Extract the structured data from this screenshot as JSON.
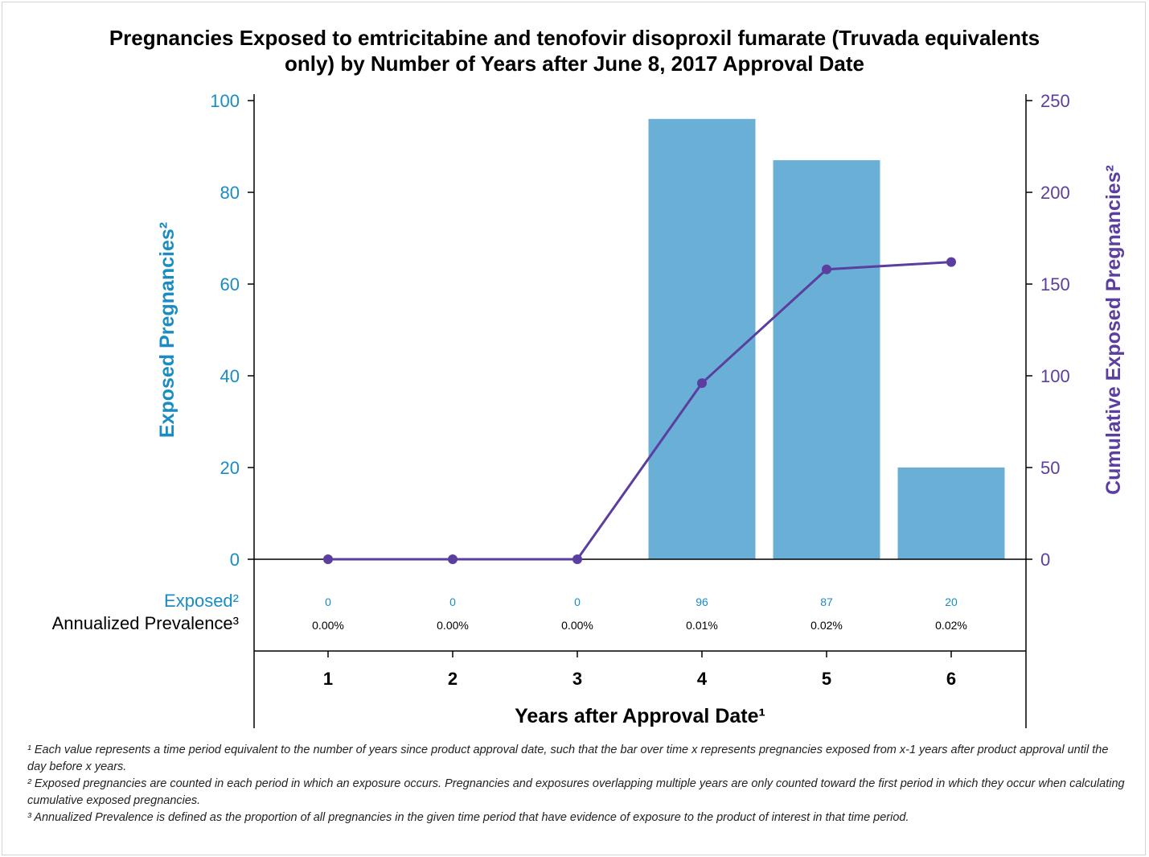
{
  "chart_data": {
    "type": "bar",
    "title_line1": "Pregnancies Exposed to emtricitabine and tenofovir disoproxil fumarate (Truvada equivalents",
    "title_line2": "only) by Number of Years after June 8, 2017 Approval Date",
    "xlabel": "Years after Approval Date¹",
    "ylabel_left": "Exposed Pregnancies²",
    "ylabel_right": "Cumulative Exposed Pregnancies²",
    "categories": [
      "1",
      "2",
      "3",
      "4",
      "5",
      "6"
    ],
    "series": [
      {
        "name": "Exposed²",
        "type": "bar",
        "axis": "left",
        "color": "#69AFD6",
        "values": [
          0,
          0,
          0,
          96,
          87,
          20
        ]
      },
      {
        "type": "line",
        "axis": "right",
        "color": "#5B3EA0",
        "values": [
          0,
          0,
          0,
          96,
          158,
          162
        ]
      }
    ],
    "ylim_left": [
      0,
      100
    ],
    "ylim_right": [
      0,
      250
    ],
    "yticks_left": [
      0,
      20,
      40,
      60,
      80,
      100
    ],
    "yticks_right": [
      0,
      50,
      100,
      150,
      200,
      250
    ],
    "grid": false,
    "table": {
      "rows": [
        {
          "label": "Exposed²",
          "color": "#1A8CC4",
          "values": [
            "0",
            "0",
            "0",
            "96",
            "87",
            "20"
          ]
        },
        {
          "label": "Annualized Prevalence³",
          "color": "#000000",
          "values": [
            "0.00%",
            "0.00%",
            "0.00%",
            "0.01%",
            "0.02%",
            "0.02%"
          ]
        }
      ]
    },
    "colors": {
      "left_axis": "#1A8CC4",
      "right_axis": "#5B3EA0",
      "bar": "#69AFD6",
      "line": "#5B3EA0"
    }
  },
  "footnotes": [
    "¹ Each value represents a time period equivalent to the number of years since product approval date, such that the bar over time x represents pregnancies exposed from x-1 years after product approval until the day before x years.",
    "² Exposed pregnancies are counted in each period in which an exposure occurs. Pregnancies and exposures overlapping multiple years are only counted toward the first period in which they occur when calculating cumulative exposed pregnancies.",
    "³ Annualized Prevalence is defined as the proportion of all pregnancies in the given time period that have evidence of exposure to the product of interest in that time period."
  ]
}
